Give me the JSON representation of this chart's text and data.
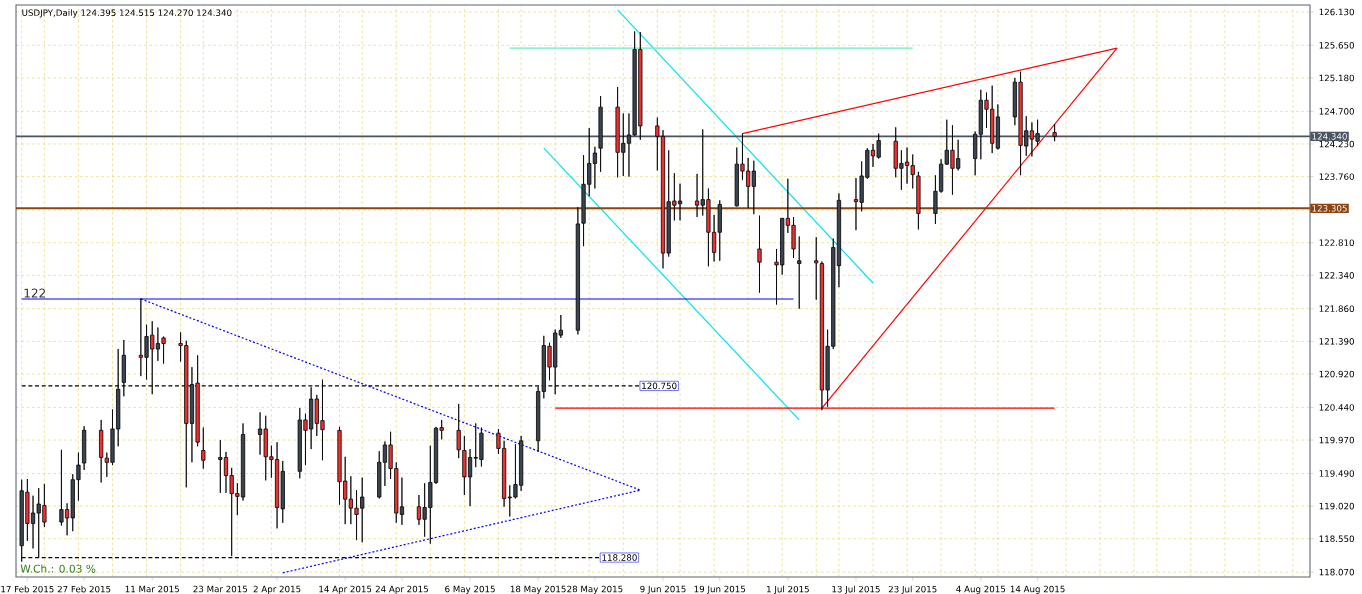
{
  "chart_data": {
    "type": "candlestick",
    "title": "USDJPY,Daily  124.395 124.515 124.270 124.340",
    "x": [
      "2015-02-16",
      "2015-02-17",
      "2015-02-18",
      "2015-02-19",
      "2015-02-20",
      "2015-02-23",
      "2015-02-24",
      "2015-02-25",
      "2015-02-26",
      "2015-02-27",
      "2015-03-02",
      "2015-03-03",
      "2015-03-04",
      "2015-03-05",
      "2015-03-06",
      "2015-03-09",
      "2015-03-10",
      "2015-03-11",
      "2015-03-12",
      "2015-03-13",
      "2015-03-16",
      "2015-03-17",
      "2015-03-18",
      "2015-03-19",
      "2015-03-20",
      "2015-03-23",
      "2015-03-24",
      "2015-03-25",
      "2015-03-26",
      "2015-03-27",
      "2015-03-30",
      "2015-03-31",
      "2015-04-01",
      "2015-04-02",
      "2015-04-03",
      "2015-04-06",
      "2015-04-07",
      "2015-04-08",
      "2015-04-09",
      "2015-04-10",
      "2015-04-13",
      "2015-04-14",
      "2015-04-15",
      "2015-04-16",
      "2015-04-17",
      "2015-04-20",
      "2015-04-21",
      "2015-04-22",
      "2015-04-23",
      "2015-04-24",
      "2015-04-27",
      "2015-04-28",
      "2015-04-29",
      "2015-04-30",
      "2015-05-01",
      "2015-05-04",
      "2015-05-05",
      "2015-05-06",
      "2015-05-07",
      "2015-05-08",
      "2015-05-11",
      "2015-05-12",
      "2015-05-13",
      "2015-05-14",
      "2015-05-15",
      "2015-05-18",
      "2015-05-19",
      "2015-05-20",
      "2015-05-21",
      "2015-05-22",
      "2015-05-25",
      "2015-05-26",
      "2015-05-27",
      "2015-05-28",
      "2015-05-29",
      "2015-06-01",
      "2015-06-02",
      "2015-06-03",
      "2015-06-04",
      "2015-06-05",
      "2015-06-08",
      "2015-06-09",
      "2015-06-10",
      "2015-06-11",
      "2015-06-12",
      "2015-06-15",
      "2015-06-16",
      "2015-06-17",
      "2015-06-18",
      "2015-06-19",
      "2015-06-22",
      "2015-06-23",
      "2015-06-24",
      "2015-06-25",
      "2015-06-26",
      "2015-06-29",
      "2015-06-30",
      "2015-07-01",
      "2015-07-02",
      "2015-07-03",
      "2015-07-06",
      "2015-07-07",
      "2015-07-08",
      "2015-07-09",
      "2015-07-10",
      "2015-07-13",
      "2015-07-14",
      "2015-07-15",
      "2015-07-16",
      "2015-07-17",
      "2015-07-20",
      "2015-07-21",
      "2015-07-22",
      "2015-07-23",
      "2015-07-24",
      "2015-07-27",
      "2015-07-28",
      "2015-07-29",
      "2015-07-30",
      "2015-07-31",
      "2015-08-03",
      "2015-08-04",
      "2015-08-05",
      "2015-08-06",
      "2015-08-07",
      "2015-08-10",
      "2015-08-11",
      "2015-08-12",
      "2015-08-13",
      "2015-08-14",
      "2015-08-17"
    ],
    "ohlc": [
      [
        118.45,
        119.4,
        118.22,
        119.24
      ],
      [
        119.22,
        119.41,
        118.52,
        118.77
      ],
      [
        118.77,
        119.17,
        118.41,
        118.92
      ],
      [
        118.92,
        119.28,
        118.28,
        119.05
      ],
      [
        119.03,
        119.34,
        118.72,
        118.79
      ],
      [
        118.79,
        119.83,
        118.74,
        118.97
      ],
      [
        118.97,
        119.06,
        118.6,
        118.85
      ],
      [
        118.85,
        119.48,
        118.66,
        119.4
      ],
      [
        119.4,
        119.79,
        119.1,
        119.61
      ],
      [
        119.64,
        120.17,
        119.54,
        120.11
      ],
      [
        120.11,
        120.26,
        119.36,
        119.72
      ],
      [
        119.71,
        119.79,
        119.44,
        119.65
      ],
      [
        119.65,
        120.41,
        119.61,
        120.13
      ],
      [
        120.13,
        121.28,
        119.88,
        120.7
      ],
      [
        120.8,
        121.41,
        120.6,
        121.19
      ],
      [
        121.19,
        122.01,
        120.89,
        121.16
      ],
      [
        121.16,
        121.63,
        120.84,
        121.46
      ],
      [
        121.48,
        121.68,
        120.63,
        121.28
      ],
      [
        121.28,
        121.59,
        121.11,
        121.36
      ],
      [
        121.44,
        121.46,
        121.07,
        121.36
      ],
      [
        121.36,
        121.52,
        121.1,
        121.33
      ],
      [
        121.33,
        121.4,
        119.29,
        120.21
      ],
      [
        120.21,
        121.02,
        119.65,
        120.77
      ],
      [
        120.79,
        121.19,
        119.88,
        119.94
      ],
      [
        119.82,
        120.15,
        119.56,
        119.68
      ],
      [
        119.69,
        119.97,
        119.21,
        119.72
      ],
      [
        119.72,
        119.8,
        119.21,
        119.46
      ],
      [
        119.46,
        119.57,
        118.3,
        119.2
      ],
      [
        119.2,
        119.35,
        118.89,
        119.16
      ],
      [
        119.15,
        120.21,
        119.1,
        120.05
      ],
      [
        120.05,
        120.37,
        119.76,
        120.13
      ],
      [
        120.13,
        120.32,
        119.39,
        119.73
      ],
      [
        119.73,
        119.89,
        119.43,
        119.69
      ],
      [
        119.69,
        119.94,
        118.7,
        119.0
      ],
      [
        118.98,
        119.67,
        118.78,
        119.52
      ],
      [
        119.52,
        120.43,
        119.42,
        120.26
      ],
      [
        120.26,
        120.35,
        119.61,
        120.11
      ],
      [
        120.13,
        120.73,
        119.84,
        120.56
      ],
      [
        120.56,
        120.62,
        120.03,
        120.21
      ],
      [
        120.25,
        120.84,
        119.68,
        120.12
      ],
      [
        120.11,
        120.16,
        119.04,
        119.37
      ],
      [
        119.38,
        119.73,
        118.76,
        119.12
      ],
      [
        119.12,
        119.45,
        118.76,
        118.99
      ],
      [
        118.99,
        119.25,
        118.53,
        118.9
      ],
      [
        118.99,
        119.43,
        118.5,
        119.15
      ],
      [
        119.15,
        119.81,
        119.13,
        119.65
      ],
      [
        119.65,
        119.95,
        119.31,
        119.9
      ],
      [
        119.9,
        120.09,
        119.41,
        119.56
      ],
      [
        119.56,
        119.65,
        118.78,
        118.92
      ],
      [
        118.9,
        119.43,
        118.75,
        119.01
      ],
      [
        119.01,
        119.18,
        118.75,
        118.83
      ],
      [
        118.83,
        119.35,
        118.58,
        119.0
      ],
      [
        119.0,
        119.89,
        118.48,
        119.36
      ],
      [
        119.36,
        120.16,
        119.34,
        120.14
      ],
      [
        120.15,
        120.26,
        119.98,
        120.11
      ],
      [
        120.11,
        120.49,
        119.71,
        119.83
      ],
      [
        119.82,
        120.03,
        119.18,
        119.44
      ],
      [
        119.44,
        119.84,
        119.02,
        119.72
      ],
      [
        119.71,
        120.21,
        119.58,
        119.72
      ],
      [
        119.69,
        120.15,
        119.59,
        120.07
      ],
      [
        120.07,
        120.13,
        119.77,
        119.85
      ],
      [
        119.85,
        119.96,
        119.01,
        119.13
      ],
      [
        119.14,
        119.32,
        118.87,
        119.15
      ],
      [
        119.15,
        119.91,
        119.13,
        119.33
      ],
      [
        119.32,
        120.03,
        119.24,
        119.96
      ],
      [
        119.96,
        120.74,
        119.8,
        120.67
      ],
      [
        120.67,
        121.47,
        120.57,
        121.33
      ],
      [
        121.32,
        121.37,
        120.83,
        121.02
      ],
      [
        121.02,
        121.56,
        120.63,
        121.51
      ],
      [
        121.48,
        121.77,
        121.44,
        121.55
      ],
      [
        121.55,
        123.32,
        121.49,
        123.08
      ],
      [
        123.09,
        124.07,
        122.76,
        123.65
      ],
      [
        123.65,
        124.46,
        123.48,
        123.95
      ],
      [
        123.95,
        124.19,
        123.59,
        124.1
      ],
      [
        124.17,
        124.92,
        123.83,
        124.76
      ],
      [
        124.76,
        125.05,
        123.75,
        124.11
      ],
      [
        124.11,
        124.67,
        123.77,
        124.24
      ],
      [
        124.24,
        124.67,
        123.76,
        124.36
      ],
      [
        124.36,
        125.85,
        124.35,
        125.59
      ],
      [
        125.59,
        125.84,
        124.29,
        124.49
      ],
      [
        124.49,
        124.61,
        123.85,
        124.34
      ],
      [
        124.34,
        124.43,
        122.44,
        122.66
      ],
      [
        122.66,
        124.14,
        122.61,
        123.4
      ],
      [
        123.41,
        123.81,
        123.13,
        123.35
      ],
      [
        123.37,
        123.66,
        123.13,
        123.41
      ],
      [
        123.41,
        123.8,
        123.18,
        123.35
      ],
      [
        123.35,
        124.44,
        123.2,
        123.43
      ],
      [
        123.43,
        123.59,
        122.47,
        122.96
      ],
      [
        122.96,
        123.21,
        122.54,
        122.67
      ],
      [
        122.96,
        123.42,
        122.55,
        123.36
      ],
      [
        123.34,
        124.18,
        123.33,
        123.94
      ],
      [
        123.94,
        124.38,
        123.71,
        123.84
      ],
      [
        123.84,
        124.03,
        123.31,
        123.62
      ],
      [
        123.62,
        123.99,
        123.22,
        123.84
      ],
      [
        122.72,
        123.2,
        122.09,
        122.53
      ],
      [
        122.53,
        122.72,
        121.92,
        122.49
      ],
      [
        122.49,
        123.16,
        122.35,
        123.16
      ],
      [
        123.16,
        123.73,
        122.95,
        123.06
      ],
      [
        123.06,
        123.18,
        122.59,
        122.72
      ],
      [
        122.51,
        122.9,
        121.86,
        122.55
      ],
      [
        122.55,
        122.89,
        121.99,
        122.52
      ],
      [
        122.51,
        122.54,
        120.4,
        120.69
      ],
      [
        120.69,
        121.56,
        120.45,
        121.32
      ],
      [
        121.32,
        122.87,
        121.28,
        122.74
      ],
      [
        122.48,
        123.52,
        122.17,
        123.42
      ],
      [
        123.43,
        123.74,
        122.99,
        123.4
      ],
      [
        123.39,
        123.98,
        123.26,
        123.77
      ],
      [
        123.75,
        124.17,
        123.73,
        124.14
      ],
      [
        124.14,
        124.23,
        123.9,
        124.06
      ],
      [
        124.04,
        124.38,
        124.02,
        124.28
      ],
      [
        124.27,
        124.47,
        123.75,
        123.88
      ],
      [
        123.88,
        124.14,
        123.57,
        123.95
      ],
      [
        123.97,
        124.18,
        123.66,
        123.92
      ],
      [
        123.92,
        124.08,
        123.59,
        123.79
      ],
      [
        123.77,
        123.83,
        123.0,
        123.23
      ],
      [
        123.23,
        123.78,
        123.08,
        123.55
      ],
      [
        123.55,
        124.01,
        123.53,
        123.94
      ],
      [
        123.94,
        124.58,
        123.93,
        124.14
      ],
      [
        124.14,
        124.5,
        123.5,
        123.88
      ],
      [
        123.88,
        124.29,
        123.85,
        124.02
      ],
      [
        124.02,
        124.41,
        123.78,
        124.37
      ],
      [
        124.37,
        125.01,
        124.01,
        124.86
      ],
      [
        124.86,
        124.97,
        124.46,
        124.73
      ],
      [
        124.73,
        125.07,
        124.1,
        124.24
      ],
      [
        124.17,
        124.8,
        124.15,
        124.62
      ],
      [
        124.62,
        125.18,
        124.5,
        125.12
      ],
      [
        125.12,
        125.27,
        123.78,
        124.21
      ],
      [
        124.2,
        124.63,
        124.06,
        124.42
      ],
      [
        124.42,
        124.54,
        124.05,
        124.3
      ],
      [
        124.27,
        124.58,
        124.2,
        124.38
      ],
      [
        124.395,
        124.515,
        124.27,
        124.34
      ]
    ],
    "colors": [
      "#3a4550",
      "#f23030",
      "#3a4550",
      "#3a4550",
      "#f23030",
      "#3a4550",
      "#f23030",
      "#3a4550",
      "#3a4550",
      "#3a4550",
      "#f23030",
      "#f23030",
      "#3a4550",
      "#3a4550",
      "#3a4550",
      "#f23030",
      "#3a4550",
      "#f23030",
      "#3a4550",
      "#f23030",
      "#f23030",
      "#f23030",
      "#3a4550",
      "#f23030",
      "#f23030",
      "#3a4550",
      "#f23030",
      "#f23030",
      "#f23030",
      "#3a4550",
      "#3a4550",
      "#f23030",
      "#f23030",
      "#f23030",
      "#3a4550",
      "#3a4550",
      "#f23030",
      "#3a4550",
      "#f23030",
      "#f23030",
      "#f23030",
      "#f23030",
      "#f23030",
      "#f23030",
      "#3a4550",
      "#3a4550",
      "#3a4550",
      "#f23030",
      "#f23030",
      "#3a4550",
      "#f23030",
      "#3a4550",
      "#3a4550",
      "#3a4550",
      "#f23030",
      "#f23030",
      "#f23030",
      "#3a4550",
      "#3a4550",
      "#3a4550",
      "#f23030",
      "#f23030",
      "#3a4550",
      "#3a4550",
      "#3a4550",
      "#3a4550",
      "#3a4550",
      "#f23030",
      "#3a4550",
      "#3a4550",
      "#3a4550",
      "#3a4550",
      "#3a4550",
      "#3a4550",
      "#3a4550",
      "#f23030",
      "#3a4550",
      "#3a4550",
      "#3a4550",
      "#f23030",
      "#f23030",
      "#f23030",
      "#3a4550",
      "#f23030",
      "#3a4550",
      "#f23030",
      "#3a4550",
      "#f23030",
      "#f23030",
      "#3a4550",
      "#3a4550",
      "#f23030",
      "#f23030",
      "#3a4550",
      "#f23030",
      "#f23030",
      "#3a4550",
      "#f23030",
      "#f23030",
      "#3a4550",
      "#f23030",
      "#f23030",
      "#3a4550",
      "#3a4550",
      "#3a4550",
      "#f23030",
      "#3a4550",
      "#3a4550",
      "#f23030",
      "#3a4550",
      "#f23030",
      "#3a4550",
      "#f23030",
      "#f23030",
      "#f23030",
      "#3a4550",
      "#3a4550",
      "#3a4550",
      "#f23030",
      "#3a4550",
      "#3a4550",
      "#3a4550",
      "#f23030",
      "#f23030",
      "#3a4550",
      "#3a4550",
      "#f23030",
      "#3a4550",
      "#f23030",
      "#3a4550",
      "#f23030"
    ],
    "xlim": [
      "2015-02-15",
      "2015-10-01"
    ],
    "ylim": [
      118.0,
      126.23
    ],
    "xticks": [
      {
        "value": "2015-02-17",
        "label": "17 Feb 2015"
      },
      {
        "value": "2015-02-27",
        "label": "27 Feb 2015"
      },
      {
        "value": "2015-03-11",
        "label": "11 Mar 2015"
      },
      {
        "value": "2015-03-23",
        "label": "23 Mar 2015"
      },
      {
        "value": "2015-04-02",
        "label": "2 Apr 2015"
      },
      {
        "value": "2015-04-14",
        "label": "14 Apr 2015"
      },
      {
        "value": "2015-04-24",
        "label": "24 Apr 2015"
      },
      {
        "value": "2015-05-06",
        "label": "6 May 2015"
      },
      {
        "value": "2015-05-18",
        "label": "18 May 2015"
      },
      {
        "value": "2015-05-28",
        "label": "28 May 2015"
      },
      {
        "value": "2015-06-09",
        "label": "9 Jun 2015"
      },
      {
        "value": "2015-06-19",
        "label": "19 Jun 2015"
      },
      {
        "value": "2015-07-01",
        "label": "1 Jul 2015"
      },
      {
        "value": "2015-07-13",
        "label": "13 Jul 2015"
      },
      {
        "value": "2015-07-23",
        "label": "23 Jul 2015"
      },
      {
        "value": "2015-08-04",
        "label": "4 Aug 2015"
      },
      {
        "value": "2015-08-14",
        "label": "14 Aug 2015"
      }
    ],
    "yticks": [
      {
        "value": 118.07,
        "label": "118.070"
      },
      {
        "value": 118.55,
        "label": "118.550"
      },
      {
        "value": 119.02,
        "label": "119.020"
      },
      {
        "value": 119.49,
        "label": "119.490"
      },
      {
        "value": 119.97,
        "label": "119.970"
      },
      {
        "value": 120.44,
        "label": "120.440"
      },
      {
        "value": 120.92,
        "label": "120.920"
      },
      {
        "value": 121.39,
        "label": "121.390"
      },
      {
        "value": 121.86,
        "label": "121.860"
      },
      {
        "value": 122.34,
        "label": "122.340"
      },
      {
        "value": 122.81,
        "label": "122.810"
      },
      {
        "value": 123.28,
        "label": null
      },
      {
        "value": 123.76,
        "label": "123.760"
      },
      {
        "value": 124.23,
        "label": "124.230"
      },
      {
        "value": 124.7,
        "label": "124.700"
      },
      {
        "value": 125.18,
        "label": "125.180"
      },
      {
        "value": 125.65,
        "label": "125.650"
      },
      {
        "value": 126.13,
        "label": "126.130"
      }
    ],
    "grid": true,
    "series": [
      {
        "type": "line",
        "color": "#0000ff",
        "line_style": "dotted",
        "x": [
          "2015-03-09",
          "2015-06-05"
        ],
        "values": [
          122.0,
          119.25
        ]
      },
      {
        "type": "line",
        "color": "#0000ff",
        "line_style": "dotted",
        "x": [
          "2015-04-03",
          "2015-06-05"
        ],
        "values": [
          118.06,
          119.25
        ]
      },
      {
        "type": "line",
        "color": "#00e5ee",
        "x": [
          "2015-06-01",
          "2015-07-16"
        ],
        "values": [
          126.16,
          122.23
        ]
      },
      {
        "type": "line",
        "color": "#00e5ee",
        "x": [
          "2015-05-19",
          "2015-07-03"
        ],
        "values": [
          124.17,
          120.26
        ]
      },
      {
        "type": "line",
        "color": "#66eec0",
        "x": [
          "2015-05-13",
          "2015-07-23"
        ],
        "values": [
          125.61,
          125.61
        ]
      },
      {
        "type": "line",
        "color": "#ff0000",
        "x": [
          "2015-06-23",
          "2015-08-28"
        ],
        "values": [
          124.38,
          125.61
        ]
      },
      {
        "type": "line",
        "color": "#ff0000",
        "x": [
          "2015-07-07",
          "2015-08-28"
        ],
        "values": [
          120.43,
          125.61
        ]
      },
      {
        "type": "line",
        "color": "#ff0000",
        "x": [
          "2015-05-21",
          "2015-08-17"
        ],
        "values": [
          120.43,
          120.43
        ]
      },
      {
        "type": "line",
        "name": "122",
        "color": "#0000ff",
        "line_style": "solid",
        "x": [
          "2015-02-16",
          "2015-07-02"
        ],
        "values": [
          122.0,
          122.0
        ]
      },
      {
        "type": "line",
        "name": "120.750",
        "color": "#000000",
        "line_style": "dashed",
        "x": [
          "2015-02-16",
          "2015-06-05"
        ],
        "values": [
          120.75,
          120.75
        ]
      },
      {
        "type": "line",
        "name": "118.280",
        "color": "#000000",
        "line_style": "dashed",
        "x": [
          "2015-02-16",
          "2015-05-29"
        ],
        "values": [
          118.28,
          118.28
        ]
      }
    ],
    "ref_lines": [
      {
        "axis": "y",
        "value": 123.305,
        "label": "123.305",
        "color": "#8b4513"
      },
      {
        "axis": "y",
        "value": 124.34,
        "label": "124.340",
        "color": "#4a5561"
      }
    ],
    "annotations": [
      "W.Ch.: 0.03 %"
    ]
  }
}
